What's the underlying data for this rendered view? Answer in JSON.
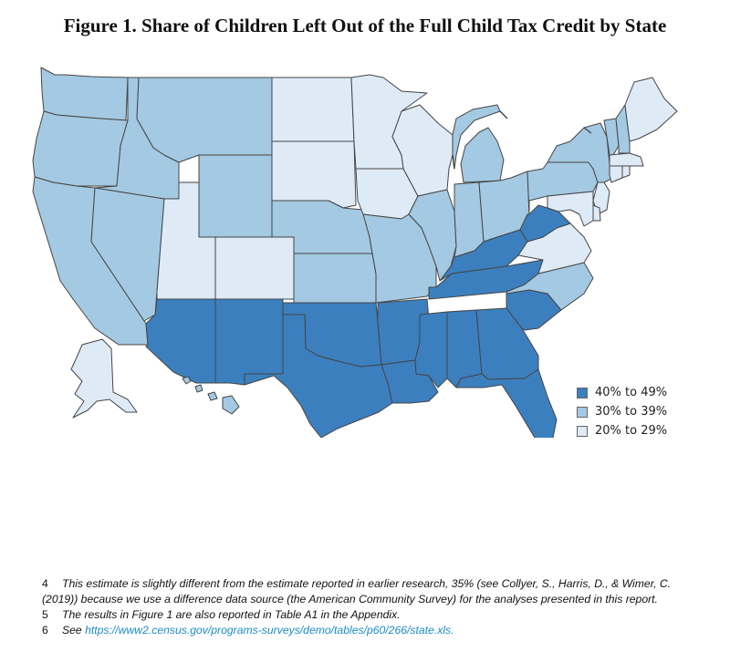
{
  "title": "Figure 1. Share of Children Left Out of the Full Child Tax Credit by State",
  "colors": {
    "high": "#3c7fbe",
    "mid": "#a4c9e2",
    "low": "#deeaf6",
    "border": "#454545"
  },
  "legend": [
    {
      "label": "40% to 49%",
      "color": "#3c7fbe"
    },
    {
      "label": "30% to 39%",
      "color": "#a4c9e2"
    },
    {
      "label": "20% to 29%",
      "color": "#deeaf6"
    }
  ],
  "state_categories": {
    "WA": "mid",
    "OR": "mid",
    "CA": "mid",
    "NV": "mid",
    "ID": "mid",
    "MT": "mid",
    "WY": "mid",
    "UT": "low",
    "CO": "low",
    "AZ": "high",
    "NM": "high",
    "ND": "low",
    "SD": "low",
    "NE": "mid",
    "KS": "mid",
    "OK": "high",
    "TX": "high",
    "MN": "low",
    "IA": "low",
    "MO": "mid",
    "AR": "high",
    "LA": "high",
    "WI": "low",
    "IL": "mid",
    "MI": "mid",
    "IN": "mid",
    "OH": "mid",
    "KY": "high",
    "TN": "high",
    "MS": "high",
    "AL": "high",
    "GA": "high",
    "FL": "high",
    "SC": "high",
    "NC": "mid",
    "VA": "low",
    "WV": "high",
    "PA": "mid",
    "NY": "mid",
    "NJ": "low",
    "DE": "low",
    "MD": "low",
    "VT": "mid",
    "NH": "mid",
    "ME": "low",
    "MA": "low",
    "CT": "low",
    "RI": "low",
    "AK": "low",
    "HI": "mid"
  },
  "footnotes": [
    {
      "num": "4",
      "text": "This estimate is slightly different from the estimate reported in earlier research, 35% (see Collyer, S., Harris, D., & Wimer, C. (2019)) because we use a difference data source (the American Community Survey) for the analyses presented in this report."
    },
    {
      "num": "5",
      "text": "The results in Figure 1 are also reported in Table A1 in the Appendix."
    },
    {
      "num": "6",
      "text": "See ",
      "link": "https://www2.census.gov/programs-surveys/demo/tables/p60/266/state.xls."
    }
  ]
}
